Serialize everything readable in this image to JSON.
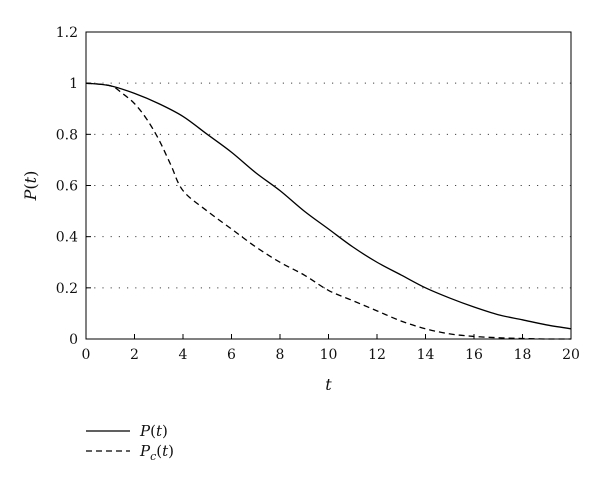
{
  "chart_data": {
    "type": "line",
    "xlabel": "t",
    "ylabel": "P(t)",
    "xlim": [
      0,
      20
    ],
    "ylim": [
      0,
      1.2
    ],
    "xticks": [
      "0",
      "2",
      "4",
      "6",
      "8",
      "10",
      "12",
      "14",
      "16",
      "18",
      "20"
    ],
    "yticks": [
      "0",
      "0.2",
      "0.4",
      "0.6",
      "0.8",
      "1",
      "1.2"
    ],
    "grid": "horizontal dotted",
    "legend_placement": "bottom-left, outside plot",
    "series": [
      {
        "name": "P(t)",
        "style": "solid",
        "color": "#000000",
        "x": [
          0,
          1,
          2,
          3,
          4,
          5,
          6,
          7,
          8,
          9,
          10,
          11,
          12,
          13,
          14,
          15,
          16,
          17,
          18,
          19,
          20
        ],
        "y": [
          1.0,
          0.99,
          0.96,
          0.92,
          0.87,
          0.8,
          0.73,
          0.65,
          0.58,
          0.5,
          0.43,
          0.36,
          0.3,
          0.25,
          0.2,
          0.16,
          0.125,
          0.095,
          0.075,
          0.055,
          0.04
        ]
      },
      {
        "name": "Pc(t)",
        "style": "dashed",
        "color": "#000000",
        "x": [
          0,
          1,
          1.5,
          2,
          2.5,
          3,
          3.5,
          4,
          5,
          6,
          7,
          8,
          9,
          10,
          11,
          12,
          13,
          14,
          15,
          16,
          17,
          18,
          19,
          20
        ],
        "y": [
          1.0,
          0.99,
          0.96,
          0.92,
          0.86,
          0.78,
          0.68,
          0.58,
          0.5,
          0.43,
          0.36,
          0.3,
          0.25,
          0.19,
          0.15,
          0.11,
          0.07,
          0.04,
          0.02,
          0.01,
          0.005,
          0.002,
          0.0,
          0.0
        ]
      }
    ]
  }
}
